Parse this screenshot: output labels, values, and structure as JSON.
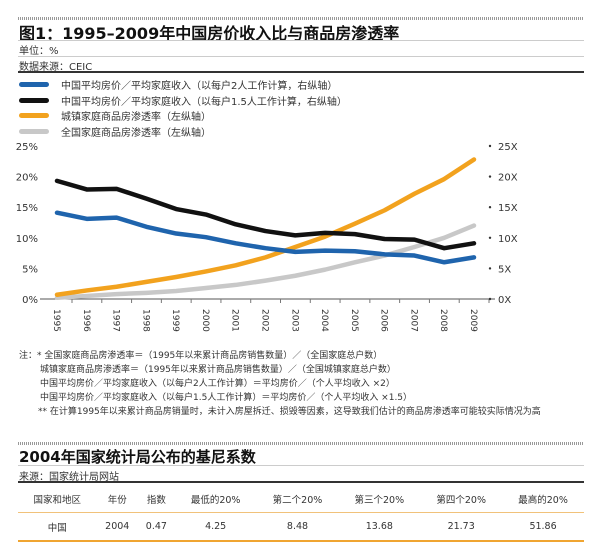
{
  "header": {
    "title": "图1：1995–2009年中国房价收入比与商品房渗透率",
    "unit": "单位：%",
    "source": "数据来源：CEIC"
  },
  "legend": [
    {
      "label": "中国平均房价／平均家庭收入（以每户2人工作计算，右纵轴）",
      "color": "#1f64ad"
    },
    {
      "label": "中国平均房价／平均家庭收入（以每户1.5人工作计算，右纵轴）",
      "color": "#111111"
    },
    {
      "label": "城镇家庭商品房渗透率（左纵轴）",
      "color": "#f2a21e"
    },
    {
      "label": "全国家庭商品房渗透率（左纵轴）",
      "color": "#c8c8c8"
    }
  ],
  "chart_data": {
    "type": "line",
    "x": [
      "1995",
      "1996",
      "1997",
      "1998",
      "1999",
      "2000",
      "2001",
      "2002",
      "2003",
      "2004",
      "2005",
      "2006",
      "2007",
      "2008",
      "2009"
    ],
    "ylim_left": [
      0,
      25
    ],
    "yticks_left": [
      "0%",
      "5%",
      "10%",
      "15%",
      "20%",
      "25%"
    ],
    "ylim_right": [
      0,
      25
    ],
    "yticks_right": [
      "0X",
      "5X",
      "10X",
      "15X",
      "20X",
      "25X"
    ],
    "grid": false,
    "series": [
      {
        "name": "中国平均房价／平均家庭收入（以每户2人工作计算，右纵轴）",
        "axis": "right",
        "color": "#1f64ad",
        "values": [
          14.1,
          13.1,
          13.3,
          11.8,
          10.7,
          10.1,
          9.1,
          8.3,
          7.7,
          7.9,
          7.8,
          7.3,
          7.1,
          6.0,
          6.8
        ]
      },
      {
        "name": "中国平均房价／平均家庭收入（以每户1.5人工作计算，右纵轴）",
        "axis": "right",
        "color": "#111111",
        "values": [
          19.3,
          17.9,
          18.0,
          16.4,
          14.7,
          13.8,
          12.2,
          11.1,
          10.4,
          10.8,
          10.6,
          9.8,
          9.7,
          8.3,
          9.1
        ]
      },
      {
        "name": "城镇家庭商品房渗透率（左纵轴）",
        "axis": "left",
        "color": "#f2a21e",
        "values": [
          0.7,
          1.4,
          2.0,
          2.8,
          3.6,
          4.5,
          5.5,
          6.8,
          8.5,
          10.2,
          12.3,
          14.5,
          17.2,
          19.6,
          22.8
        ]
      },
      {
        "name": "全国家庭商品房渗透率（左纵轴）",
        "axis": "left",
        "color": "#c8c8c8",
        "values": [
          0.2,
          0.5,
          0.8,
          1.0,
          1.3,
          1.8,
          2.3,
          3.0,
          3.8,
          4.8,
          6.0,
          7.1,
          8.5,
          10.0,
          12.0
        ]
      }
    ]
  },
  "notes": [
    "注：* 全国家庭商品房渗透率＝（1995年以来累计商品房销售数量）／（全国家庭总户数）",
    "城镇家庭商品房渗透率＝（1995年以来累计商品房销售数量）／（全国城镇家庭总户数）",
    "中国平均房价／平均家庭收入（以每户2人工作计算）＝平均房价／（个人平均收入 ×2）",
    "中国平均房价／平均家庭收入（以每户1.5人工作计算）＝平均房价／（个人平均收入 ×1.5）",
    "** 在计算1995年以来累计商品房销量时，未计入房屋拆迁、损毁等因素，这导致我们估计的商品房渗透率可能较实际情况为高"
  ],
  "table": {
    "title": "2004年国家统计局公布的基尼系数",
    "source": "来源：国家统计局网站",
    "headers": [
      "国家和地区",
      "年份",
      "指数",
      "最低的20%",
      "第二个20%",
      "第三个20%",
      "第四个20%",
      "最高的20%"
    ],
    "rows": [
      [
        "中国",
        "2004",
        "0.47",
        "4.25",
        "8.48",
        "13.68",
        "21.73",
        "51.86"
      ]
    ]
  }
}
